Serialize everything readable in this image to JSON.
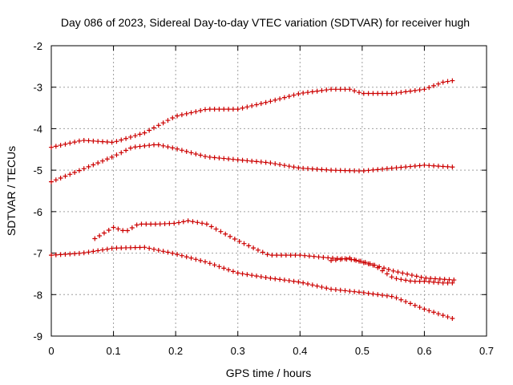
{
  "chart_data": {
    "type": "scatter",
    "title": "Day 086 of 2023, Sidereal Day-to-day VTEC variation (SDTVAR) for receiver hugh",
    "xlabel": "GPS time / hours",
    "ylabel": "SDTVAR / TECUs",
    "xlim": [
      0,
      0.7
    ],
    "ylim": [
      -9,
      -2
    ],
    "x_ticks": [
      0,
      0.1,
      0.2,
      0.3,
      0.4,
      0.5,
      0.6,
      0.7
    ],
    "x_tick_labels": [
      "0",
      "0.1",
      "0.2",
      "0.3",
      "0.4",
      "0.5",
      "0.6",
      "0.7"
    ],
    "y_ticks": [
      -9,
      -8,
      -7,
      -6,
      -5,
      -4,
      -3,
      -2
    ],
    "y_tick_labels": [
      "-9",
      "-8",
      "-7",
      "-6",
      "-5",
      "-4",
      "-3",
      "-2"
    ],
    "grid": true,
    "marker": "plus",
    "marker_color": "#cc0000",
    "series": [
      {
        "name": "s1",
        "x": [
          0,
          0.05,
          0.1,
          0.15,
          0.2,
          0.25,
          0.3,
          0.35,
          0.4,
          0.45,
          0.48,
          0.5,
          0.55,
          0.6,
          0.63,
          0.65
        ],
        "y": [
          -4.45,
          -4.28,
          -4.33,
          -4.1,
          -3.7,
          -3.53,
          -3.53,
          -3.35,
          -3.15,
          -3.05,
          -3.05,
          -3.15,
          -3.15,
          -3.05,
          -2.88,
          -2.83
        ]
      },
      {
        "name": "s2",
        "x": [
          0,
          0.05,
          0.1,
          0.13,
          0.17,
          0.2,
          0.25,
          0.3,
          0.35,
          0.4,
          0.45,
          0.5,
          0.55,
          0.6,
          0.65
        ],
        "y": [
          -5.28,
          -4.98,
          -4.67,
          -4.45,
          -4.38,
          -4.48,
          -4.68,
          -4.75,
          -4.82,
          -4.95,
          -5.0,
          -5.02,
          -4.95,
          -4.88,
          -4.93
        ]
      },
      {
        "name": "s3",
        "x": [
          0.07,
          0.1,
          0.12,
          0.14,
          0.17,
          0.2,
          0.22,
          0.25,
          0.3,
          0.35,
          0.4,
          0.45,
          0.48,
          0.5,
          0.55,
          0.6,
          0.65
        ],
        "y": [
          -6.65,
          -6.38,
          -6.48,
          -6.3,
          -6.3,
          -6.28,
          -6.22,
          -6.3,
          -6.7,
          -7.05,
          -7.05,
          -7.12,
          -7.15,
          -7.2,
          -7.43,
          -7.6,
          -7.65
        ]
      },
      {
        "name": "s4",
        "x": [
          0,
          0.05,
          0.1,
          0.15,
          0.2,
          0.25,
          0.3,
          0.35,
          0.4,
          0.45,
          0.5,
          0.55,
          0.6,
          0.65
        ],
        "y": [
          -7.05,
          -7.0,
          -6.88,
          -6.86,
          -7.02,
          -7.22,
          -7.48,
          -7.6,
          -7.7,
          -7.87,
          -7.95,
          -8.05,
          -8.35,
          -8.6
        ]
      },
      {
        "name": "s5",
        "x": [
          0.45,
          0.48,
          0.5,
          0.52,
          0.55,
          0.58,
          0.6,
          0.63,
          0.65
        ],
        "y": [
          -7.18,
          -7.12,
          -7.22,
          -7.3,
          -7.6,
          -7.68,
          -7.68,
          -7.72,
          -7.72
        ]
      }
    ]
  }
}
